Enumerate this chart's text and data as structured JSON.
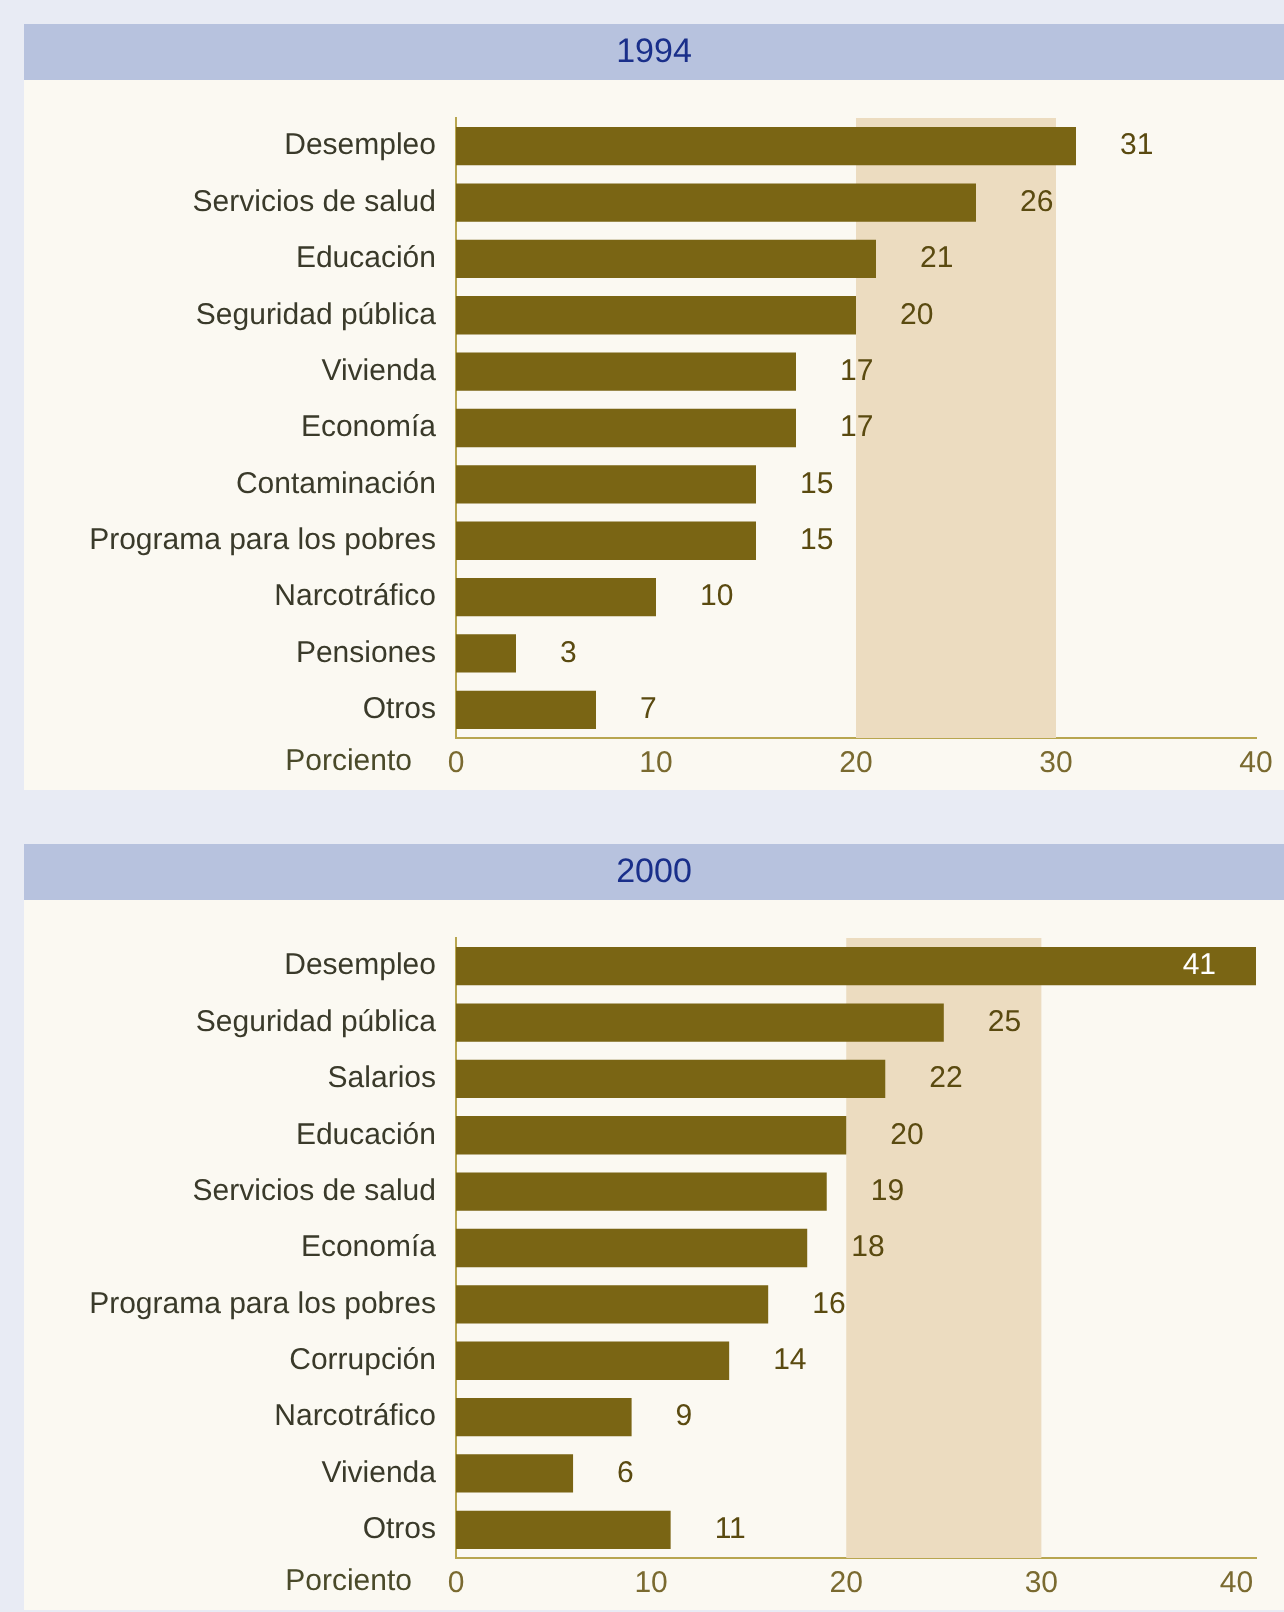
{
  "chart_data": [
    {
      "type": "bar",
      "title": "1994",
      "orientation": "horizontal",
      "xlabel": "Porciento",
      "categories": [
        "Desempleo",
        "Servicios de salud",
        "Educación",
        "Seguridad pública",
        "Vivienda",
        "Economía",
        "Contaminación",
        "Programa para los pobres",
        "Narcotráfico",
        "Pensiones",
        "Otros"
      ],
      "values": [
        31,
        26,
        21,
        20,
        17,
        17,
        15,
        15,
        10,
        3,
        7
      ],
      "color": "#7a6514",
      "xlim": [
        0,
        40
      ],
      "xticks": [
        0,
        10,
        20,
        30,
        40
      ],
      "data_labels": true,
      "grid": false,
      "legend": false,
      "bands": [
        {
          "axis": "x",
          "from": 20,
          "to": 30,
          "color": "#ecdcc0"
        }
      ]
    },
    {
      "type": "bar",
      "title": "2000",
      "orientation": "horizontal",
      "xlabel": "Porciento",
      "categories": [
        "Desempleo",
        "Seguridad pública",
        "Salarios",
        "Educación",
        "Servicios de salud",
        "Economía",
        "Programa para los pobres",
        "Corrupción",
        "Narcotráfico",
        "Vivienda",
        "Otros"
      ],
      "values": [
        41,
        25,
        22,
        20,
        19,
        18,
        16,
        14,
        9,
        6,
        11
      ],
      "color": "#7a6514",
      "xlim": [
        0,
        41
      ],
      "xticks": [
        0,
        10,
        20,
        30,
        40
      ],
      "data_labels": true,
      "grid": false,
      "legend": false,
      "bands": [
        {
          "axis": "x",
          "from": 20,
          "to": 30,
          "color": "#ecdcc0"
        }
      ]
    }
  ]
}
